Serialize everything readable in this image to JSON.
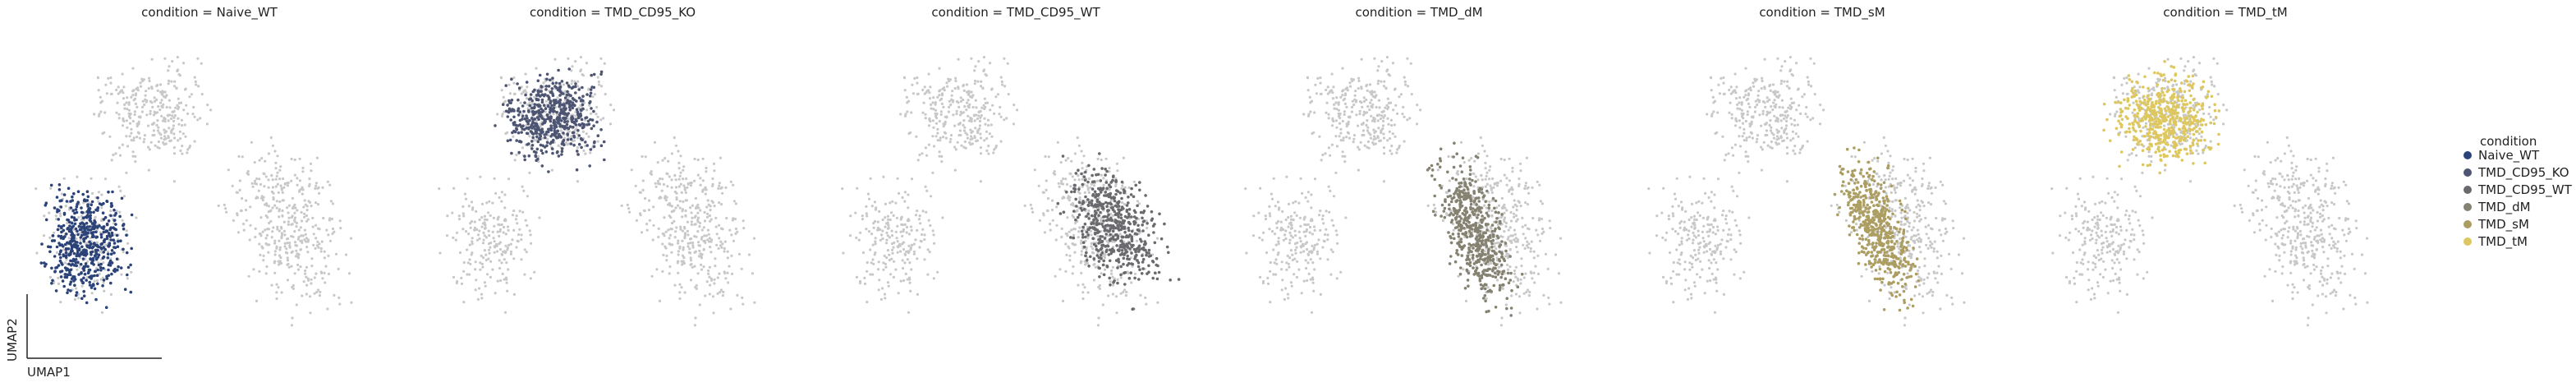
{
  "chart_data": {
    "type": "scatter",
    "facet_prefix": "condition = ",
    "xlabel": "UMAP1",
    "ylabel": "UMAP2",
    "legend": {
      "title": "condition",
      "placement": "right",
      "items": [
        {
          "label": "Naive_WT",
          "color": "#2b4378"
        },
        {
          "label": "TMD_CD95_KO",
          "color": "#4d5573"
        },
        {
          "label": "TMD_CD95_WT",
          "color": "#6a6a6e"
        },
        {
          "label": "TMD_dM",
          "color": "#858271"
        },
        {
          "label": "TMD_sM",
          "color": "#ac9d61"
        },
        {
          "label": "TMD_tM",
          "color": "#ddc75e"
        }
      ]
    },
    "background_color": "#c8c8c8",
    "panels": [
      {
        "title": "condition = Naive_WT",
        "highlight": "Naive_WT",
        "color": "#2b4378",
        "region": "lower-left"
      },
      {
        "title": "condition = TMD_CD95_KO",
        "highlight": "TMD_CD95_KO",
        "color": "#4d5573",
        "region": "top-left"
      },
      {
        "title": "condition = TMD_CD95_WT",
        "highlight": "TMD_CD95_WT",
        "color": "#6a6a6e",
        "region": "right"
      },
      {
        "title": "condition = TMD_dM",
        "highlight": "TMD_dM",
        "color": "#858271",
        "region": "right-center"
      },
      {
        "title": "condition = TMD_sM",
        "highlight": "TMD_sM",
        "color": "#ac9d61",
        "region": "right-center"
      },
      {
        "title": "condition = TMD_tM",
        "highlight": "TMD_tM",
        "color": "#ddc75e",
        "region": "top-left"
      }
    ]
  }
}
